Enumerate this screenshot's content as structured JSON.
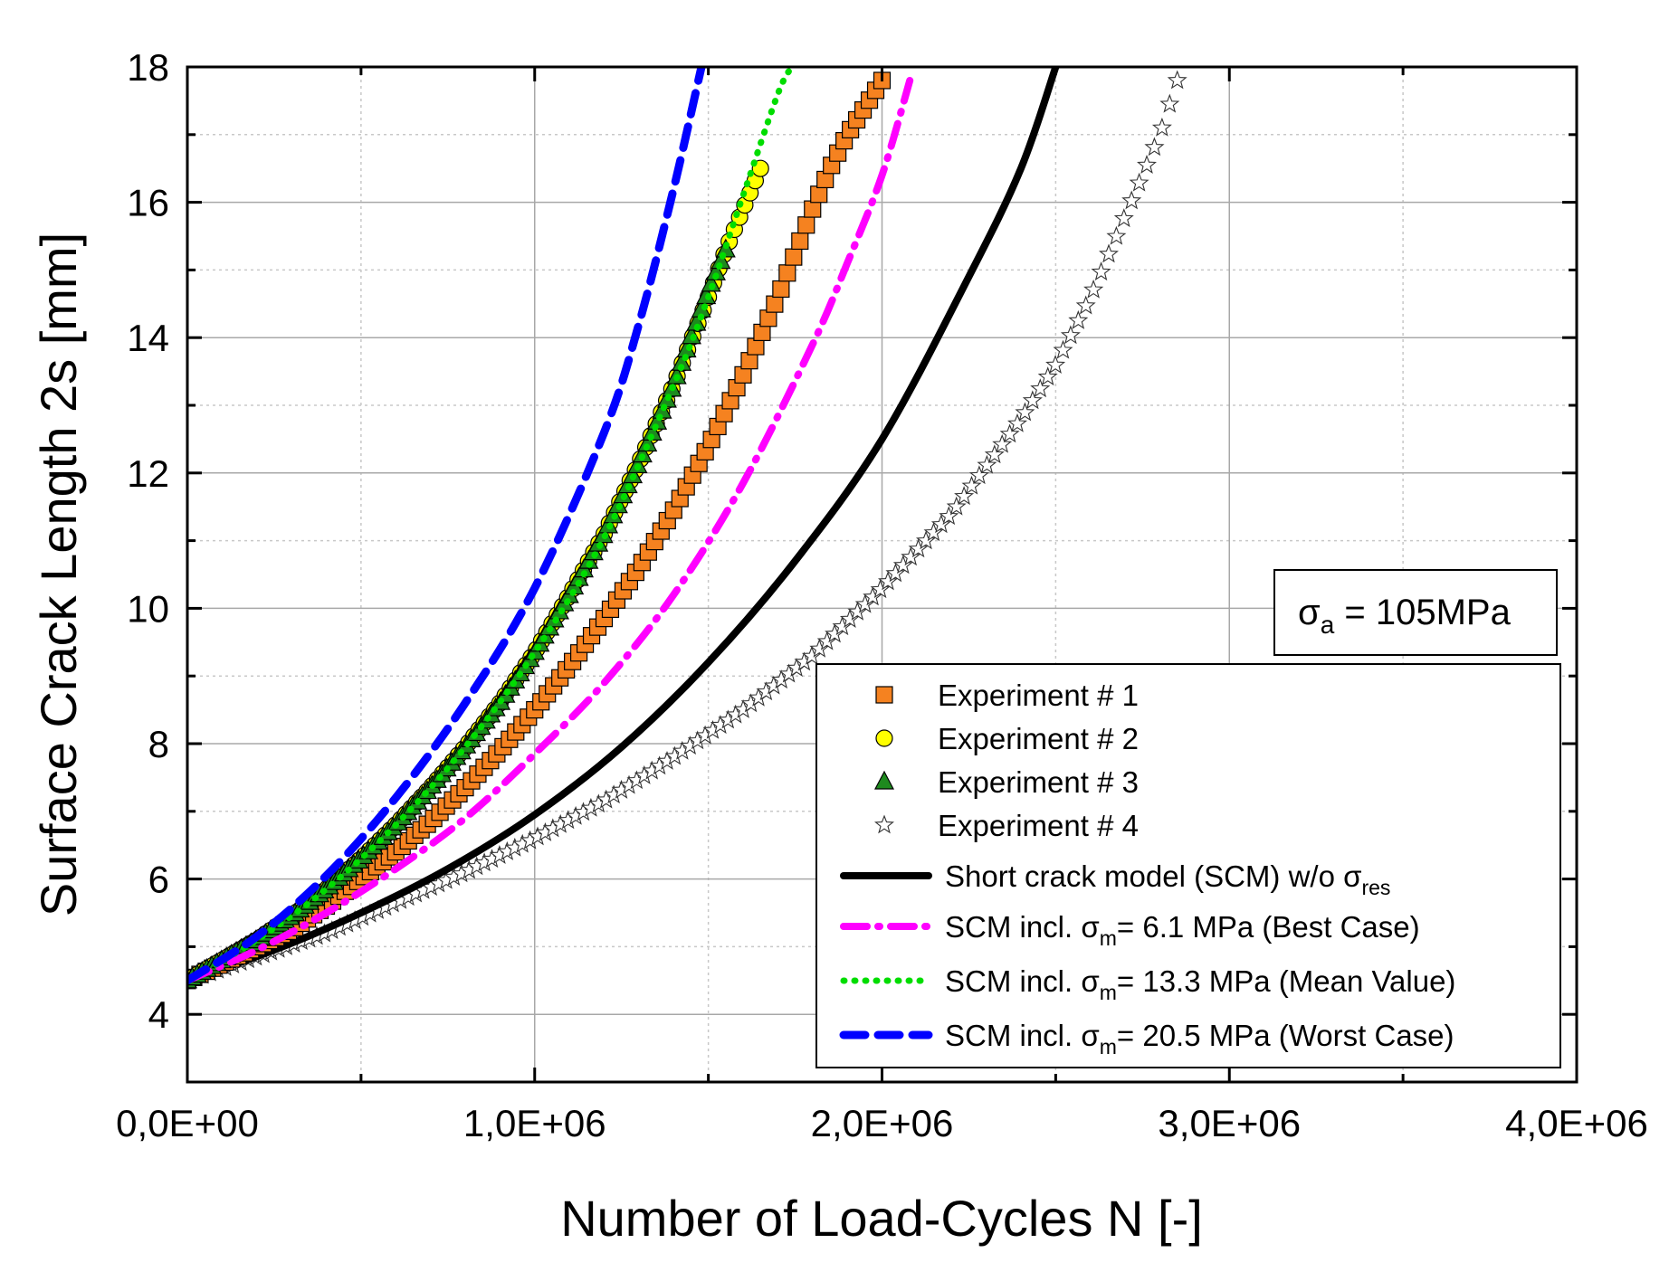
{
  "chart_data": {
    "type": "scatter",
    "xlabel": "Number of Load-Cycles N [-]",
    "ylabel": "Surface Crack Length 2s [mm]",
    "xlim": [
      0,
      4000000
    ],
    "ylim": [
      3,
      18
    ],
    "x_ticks": [
      0,
      1000000,
      2000000,
      3000000,
      4000000
    ],
    "x_tick_labels": [
      "0,0E+00",
      "1,0E+06",
      "2,0E+06",
      "3,0E+06",
      "4,0E+06"
    ],
    "y_ticks": [
      4,
      6,
      8,
      10,
      12,
      14,
      16,
      18
    ],
    "y_tick_labels": [
      "4",
      "6",
      "8",
      "10",
      "12",
      "14",
      "16",
      "18"
    ],
    "grid": true,
    "legend_position": "bottom-right",
    "annotation": {
      "sym": "σ",
      "sub": "a",
      "text": " = 105MPa"
    },
    "series": [
      {
        "name": "Experiment # 1",
        "kind": "markers",
        "marker": "square",
        "color": "#f58220",
        "x": [
          0,
          100000,
          200000,
          300000,
          400000,
          500000,
          600000,
          700000,
          800000,
          900000,
          1000000,
          1100000,
          1200000,
          1300000,
          1400000,
          1500000,
          1600000,
          1700000,
          1800000,
          1850000,
          1900000,
          1950000,
          2000000
        ],
        "y": [
          4.5,
          4.75,
          5.0,
          5.25,
          5.6,
          6.0,
          6.4,
          6.85,
          7.35,
          7.9,
          8.5,
          9.15,
          9.85,
          10.6,
          11.45,
          12.4,
          13.45,
          14.6,
          15.9,
          16.5,
          17.0,
          17.4,
          17.8
        ]
      },
      {
        "name": "Experiment # 2",
        "kind": "markers",
        "marker": "circle",
        "color": "#ffff00",
        "x": [
          0,
          100000,
          200000,
          300000,
          400000,
          500000,
          600000,
          700000,
          800000,
          900000,
          1000000,
          1100000,
          1200000,
          1300000,
          1400000,
          1500000,
          1550000,
          1600000,
          1650000
        ],
        "y": [
          4.5,
          4.8,
          5.1,
          5.45,
          5.85,
          6.3,
          6.8,
          7.35,
          7.95,
          8.6,
          9.35,
          10.2,
          11.1,
          12.15,
          13.3,
          14.6,
          15.3,
          15.9,
          16.5
        ]
      },
      {
        "name": "Experiment # 3",
        "kind": "markers",
        "marker": "triangle",
        "color": "#1e8a1e",
        "x": [
          0,
          100000,
          200000,
          300000,
          400000,
          500000,
          600000,
          700000,
          800000,
          900000,
          1000000,
          1100000,
          1200000,
          1300000,
          1400000,
          1450000,
          1500000,
          1550000
        ],
        "y": [
          4.5,
          4.8,
          5.1,
          5.45,
          5.85,
          6.3,
          6.8,
          7.35,
          7.95,
          8.6,
          9.35,
          10.2,
          11.1,
          12.15,
          13.3,
          14.0,
          14.7,
          15.3
        ]
      },
      {
        "name": "Experiment # 4",
        "kind": "markers",
        "marker": "star",
        "color": "#ffffff",
        "x": [
          0,
          200000,
          400000,
          600000,
          800000,
          1000000,
          1200000,
          1400000,
          1600000,
          1800000,
          2000000,
          2200000,
          2400000,
          2500000,
          2600000,
          2700000,
          2800000,
          2850000
        ],
        "y": [
          4.5,
          4.85,
          5.2,
          5.65,
          6.1,
          6.6,
          7.15,
          7.8,
          8.5,
          9.3,
          10.3,
          11.4,
          12.8,
          13.6,
          14.6,
          15.8,
          17.0,
          17.8
        ]
      },
      {
        "name": "Short crack model (SCM) w/o σres",
        "name_parts": {
          "text": "Short crack model (SCM) w/o ",
          "sym": "σ",
          "sub": "res"
        },
        "kind": "line",
        "dash": "solid",
        "color": "#000000",
        "x": [
          0,
          250000,
          500000,
          750000,
          1000000,
          1250000,
          1500000,
          1750000,
          2000000,
          2250000,
          2400000,
          2500000
        ],
        "y": [
          4.5,
          4.95,
          5.5,
          6.15,
          6.95,
          7.95,
          9.2,
          10.7,
          12.5,
          14.9,
          16.5,
          18.0
        ]
      },
      {
        "name": "SCM incl. σm= 6.1 MPa (Best Case)",
        "name_parts": {
          "text": "SCM incl. ",
          "sym": "σ",
          "sub": "m",
          "rest": "= 6.1 MPa (Best Case)"
        },
        "kind": "line",
        "dash": "dashdot",
        "color": "#ff00ff",
        "x": [
          0,
          200000,
          400000,
          600000,
          800000,
          1000000,
          1200000,
          1400000,
          1600000,
          1800000,
          1900000,
          2000000,
          2080000
        ],
        "y": [
          4.5,
          4.95,
          5.5,
          6.15,
          6.9,
          7.85,
          8.9,
          10.2,
          11.85,
          13.9,
          15.1,
          16.4,
          17.8
        ]
      },
      {
        "name": "SCM incl. σm= 13.3 MPa (Mean Value)",
        "name_parts": {
          "text": "SCM incl. ",
          "sym": "σ",
          "sub": "m",
          "rest": "= 13.3 MPa (Mean Value)"
        },
        "kind": "line",
        "dash": "dotted",
        "color": "#00dd00",
        "x": [
          0,
          200000,
          400000,
          600000,
          800000,
          1000000,
          1200000,
          1400000,
          1500000,
          1600000,
          1700000,
          1740000
        ],
        "y": [
          4.5,
          5.1,
          5.85,
          6.8,
          7.95,
          9.35,
          11.05,
          13.3,
          14.6,
          16.1,
          17.6,
          18.0
        ]
      },
      {
        "name": "SCM incl. σm= 20.5 MPa (Worst Case)",
        "name_parts": {
          "text": "SCM incl. ",
          "sym": "σ",
          "sub": "m",
          "rest": "= 20.5 MPa (Worst Case)"
        },
        "kind": "line",
        "dash": "dashed",
        "color": "#0000ff",
        "x": [
          0,
          200000,
          400000,
          600000,
          800000,
          1000000,
          1200000,
          1300000,
          1400000,
          1480000
        ],
        "y": [
          4.5,
          5.15,
          6.05,
          7.2,
          8.6,
          10.3,
          12.6,
          14.2,
          16.2,
          18.0
        ]
      }
    ]
  }
}
